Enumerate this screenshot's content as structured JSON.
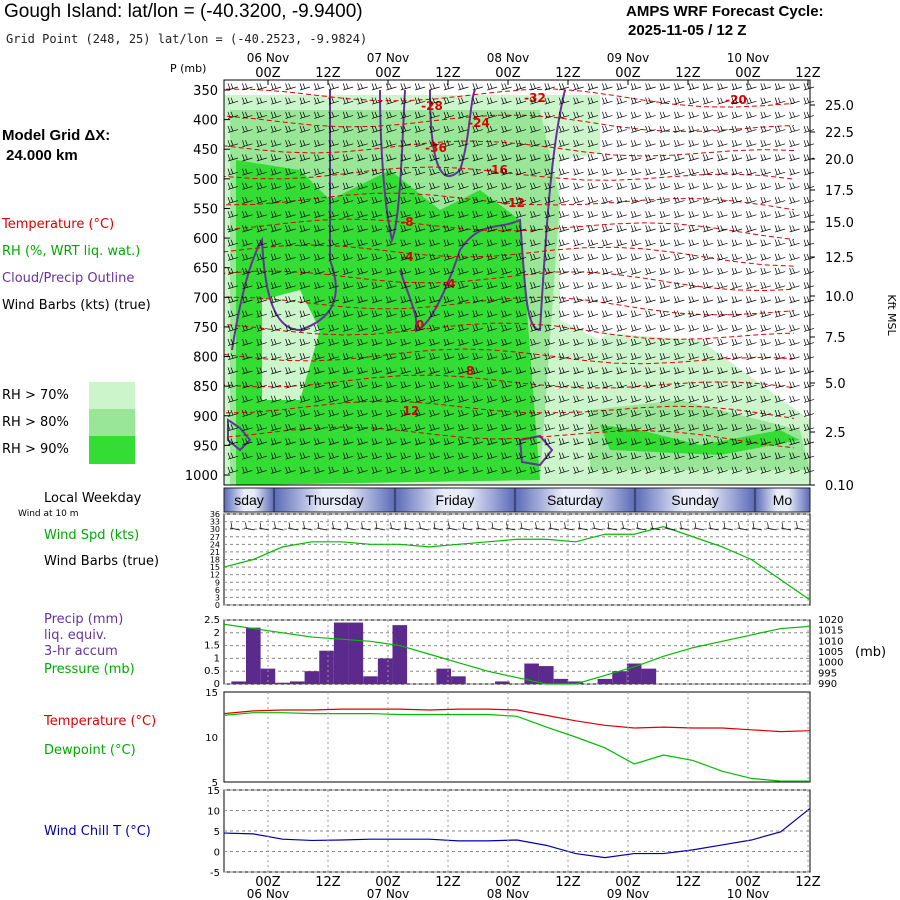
{
  "header": {
    "title": "Gough Island:  lat/lon = (-40.3200, -9.9400)",
    "grid_point": "Grid Point (248, 25) lat/lon = (-40.2523, -9.9824)",
    "forecast_label": "AMPS WRF Forecast Cycle:",
    "forecast_cycle": "2025-11-05 / 12  Z"
  },
  "left_panel": {
    "model_grid_label": "Model Grid ΔX:",
    "model_grid_value": "24.000 km",
    "temperature_legend": "Temperature (°C)",
    "rh_legend": "RH (%, WRT liq. wat.)",
    "cloud_legend": "Cloud/Precip Outline",
    "wind_legend": "Wind Barbs (kts) (true)",
    "rh_levels": [
      "RH > 70%",
      "RH > 80%",
      "RH > 90%"
    ],
    "weekday_label": "Local Weekday",
    "wind_at": "Wind at 10 m",
    "wind_spd_label": "Wind Spd (kts)",
    "wind_barbs_label": "Wind Barbs (true)",
    "precip_label": "Precip (mm)",
    "precip_sub1": "liq. equiv.",
    "precip_sub2": "3-hr accum",
    "pressure_label": "Pressure (mb)",
    "temp_label": "Temperature (°C)",
    "dewpoint_label": "Dewpoint (°C)",
    "windchill_label": "Wind Chill T (°C)"
  },
  "colors": {
    "rh70": "#ccf5cc",
    "rh80": "#99e699",
    "rh90": "#33dd33",
    "temp": "#dd0000",
    "dew": "#00bb00",
    "cloud": "#663399",
    "chill": "#0000aa"
  },
  "chart_data": [
    {
      "type": "heatmap",
      "title": "Time-height cross section",
      "ylabel": "P (mb)",
      "y2label": "Kft MSL",
      "p_ticks": [
        350,
        400,
        450,
        500,
        550,
        600,
        650,
        700,
        750,
        800,
        850,
        900,
        950,
        1000
      ],
      "kft_ticks": [
        "25.0",
        "22.5",
        "20.0",
        "17.5",
        "15.0",
        "12.5",
        "10.0",
        "7.5",
        "5.0",
        "2.5",
        "0.10"
      ],
      "time_ticks": [
        "00Z",
        "12Z",
        "00Z",
        "12Z",
        "00Z",
        "12Z",
        "00Z",
        "12Z",
        "00Z",
        "12Z"
      ],
      "date_labels": [
        "06 Nov",
        "07 Nov",
        "08 Nov",
        "09 Nov",
        "10 Nov"
      ],
      "temp_contours": [
        "-28",
        "-32",
        "-24",
        "-20",
        "-36",
        "-16",
        "-12",
        "-8",
        "-4",
        "-4",
        "0",
        "8",
        "12"
      ]
    },
    {
      "type": "table",
      "title": "Local Weekday",
      "days": [
        "sday",
        "Thursday",
        "Friday",
        "Saturday",
        "Sunday",
        "Mo"
      ]
    },
    {
      "type": "line",
      "title": "Wind Spd (kts)",
      "x_hours": [
        0,
        6,
        12,
        18,
        24,
        30,
        36,
        42,
        48,
        54,
        60,
        66,
        72,
        78,
        84,
        90,
        96,
        102,
        108,
        114,
        120
      ],
      "values": [
        15,
        18,
        23,
        25,
        25,
        24,
        24,
        23,
        24,
        25,
        26,
        26,
        25,
        28,
        28,
        31,
        27,
        23,
        18,
        10,
        2
      ],
      "ylim": [
        0,
        36
      ],
      "y_ticks": [
        0,
        3,
        6,
        9,
        12,
        15,
        18,
        21,
        24,
        27,
        30,
        33,
        36
      ]
    },
    {
      "type": "bar",
      "title": "Precip (mm) / Pressure (mb)",
      "precip_x_hours": [
        3,
        6,
        9,
        12,
        15,
        18,
        21,
        24,
        27,
        30,
        33,
        36,
        45,
        48,
        57,
        63,
        66,
        69,
        72,
        78,
        81,
        84,
        87
      ],
      "precip_values": [
        0.1,
        2.2,
        0.6,
        0.05,
        0.1,
        0.5,
        1.3,
        2.4,
        2.4,
        0.3,
        1.0,
        2.3,
        0.6,
        0.3,
        0.1,
        0.8,
        0.7,
        0.2,
        0.1,
        0.2,
        0.5,
        0.8,
        0.6
      ],
      "precip_ylim": [
        0,
        2.5
      ],
      "precip_ticks": [
        "0",
        "0.5",
        "1",
        "1.5",
        "2",
        "2.5"
      ],
      "pressure_x_hours": [
        0,
        6,
        12,
        18,
        24,
        30,
        36,
        42,
        48,
        54,
        60,
        66,
        72,
        78,
        84,
        90,
        96,
        102,
        108,
        114,
        120
      ],
      "pressure_values": [
        1018,
        1016,
        1014,
        1012,
        1011,
        1010,
        1008,
        1004,
        1000,
        996,
        993,
        990,
        990,
        994,
        998,
        1003,
        1007,
        1010,
        1013,
        1016,
        1017
      ],
      "pressure_ylim": [
        990,
        1020
      ],
      "pressure_ticks": [
        "990",
        "995",
        "1000",
        "1005",
        "1010",
        "1015",
        "1020"
      ]
    },
    {
      "type": "line",
      "title": "Temperature / Dewpoint (°C)",
      "x_hours": [
        0,
        6,
        12,
        18,
        24,
        30,
        36,
        42,
        48,
        54,
        60,
        66,
        72,
        78,
        84,
        90,
        96,
        102,
        108,
        114,
        120
      ],
      "series": [
        {
          "name": "Temperature",
          "values": [
            12.6,
            12.9,
            13.0,
            13.0,
            13.1,
            13.1,
            13.1,
            13.0,
            13.1,
            13.1,
            13.0,
            12.4,
            11.8,
            11.3,
            11.0,
            11.1,
            11.0,
            11.0,
            10.8,
            10.6,
            10.7
          ]
        },
        {
          "name": "Dewpoint",
          "values": [
            12.4,
            12.7,
            12.7,
            12.6,
            12.6,
            12.6,
            12.5,
            12.5,
            12.5,
            12.5,
            12.3,
            11.1,
            10.0,
            8.8,
            7.0,
            8.0,
            7.4,
            6.2,
            5.4,
            5.1,
            5.1
          ]
        }
      ],
      "ylim": [
        5,
        15
      ],
      "y_ticks": [
        "5",
        "10",
        "15"
      ]
    },
    {
      "type": "line",
      "title": "Wind Chill T (°C)",
      "x_hours": [
        0,
        6,
        12,
        18,
        24,
        30,
        36,
        42,
        48,
        54,
        60,
        66,
        72,
        78,
        84,
        90,
        96,
        102,
        108,
        114,
        120
      ],
      "values": [
        4.5,
        4.3,
        3.0,
        2.7,
        2.8,
        3.0,
        3.0,
        3.0,
        2.6,
        2.6,
        2.8,
        1.5,
        -0.5,
        -1.5,
        -0.5,
        -0.5,
        0.4,
        1.6,
        2.8,
        4.8,
        10.5
      ],
      "ylim": [
        -5,
        15
      ],
      "y_ticks": [
        "-5",
        "0",
        "5",
        "10",
        "15"
      ],
      "bottom_time_ticks": [
        "00Z",
        "12Z",
        "00Z",
        "12Z",
        "00Z",
        "12Z",
        "00Z",
        "12Z",
        "00Z",
        "12Z"
      ],
      "bottom_date_labels": [
        "06 Nov",
        "07 Nov",
        "08 Nov",
        "09 Nov",
        "10 Nov"
      ]
    }
  ]
}
